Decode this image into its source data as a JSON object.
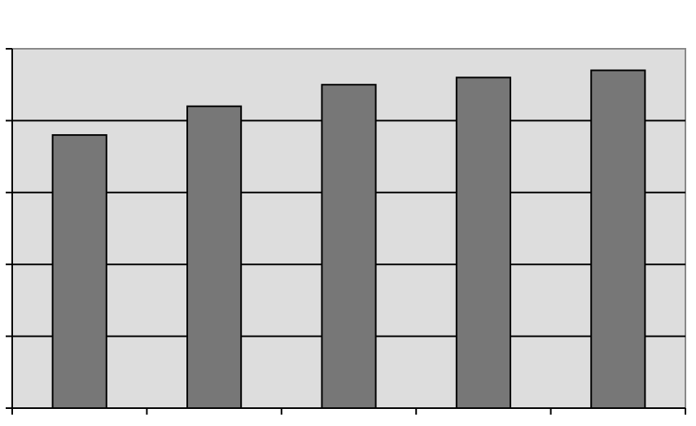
{
  "chart_data": {
    "type": "bar",
    "categories": [
      null,
      null,
      null,
      null,
      null
    ],
    "values": [
      3.8,
      4.2,
      4.5,
      4.6,
      4.7
    ],
    "color": "#777777",
    "ylim": [
      0,
      5
    ],
    "yticks": [
      0,
      1,
      2,
      3,
      4,
      5
    ],
    "grid": true
  }
}
